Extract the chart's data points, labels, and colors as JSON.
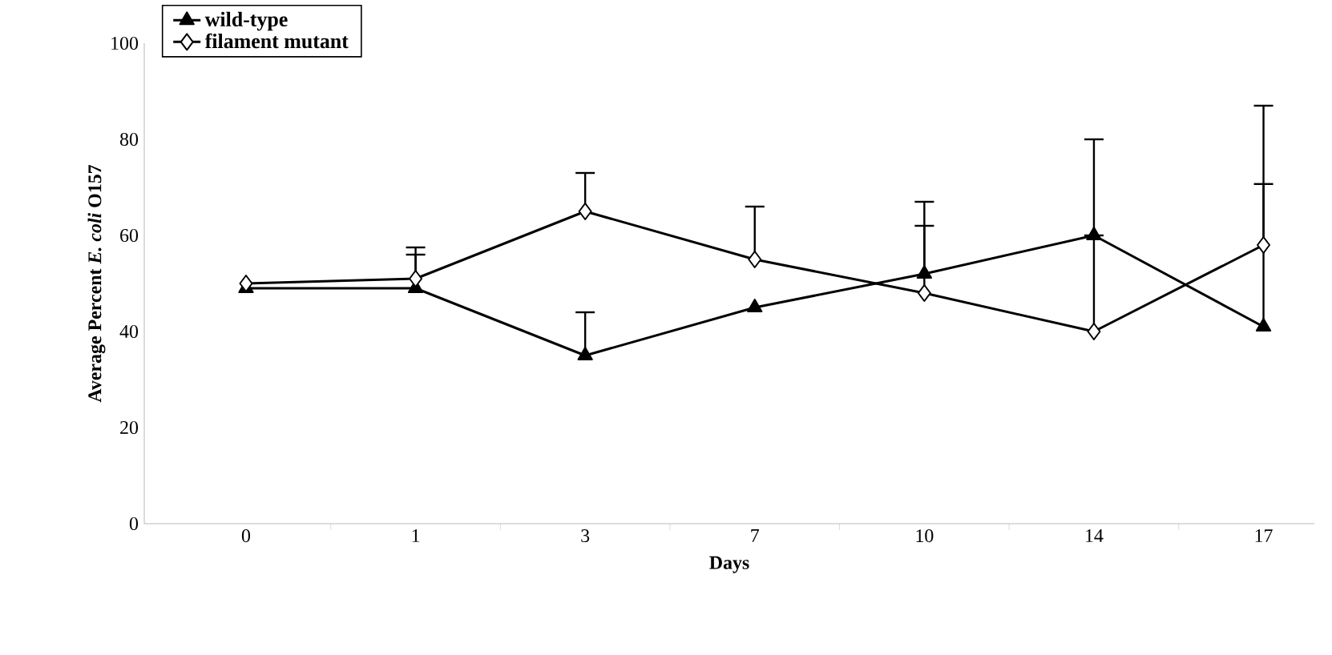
{
  "chart_data": {
    "type": "line",
    "xlabel": "Days",
    "ylabel": "Average Percent *E. coli* O157",
    "categories": [
      "0",
      "1",
      "3",
      "7",
      "10",
      "14",
      "17"
    ],
    "series": [
      {
        "name": "wild-type",
        "color": "#000000",
        "marker": "triangle",
        "values": [
          49,
          49,
          35,
          45,
          52,
          60,
          41
        ],
        "errors": [
          null,
          [
            49,
            56
          ],
          [
            35,
            44
          ],
          null,
          [
            52,
            67
          ],
          [
            60,
            80
          ],
          [
            41,
            70.7
          ]
        ]
      },
      {
        "name": "filament mutant",
        "color": "#000000",
        "marker": "diamond",
        "values": [
          50,
          51,
          65,
          55,
          48,
          40,
          58
        ],
        "errors": [
          null,
          [
            51,
            57.5
          ],
          [
            65,
            73
          ],
          [
            55,
            66
          ],
          [
            48,
            62
          ],
          [
            40,
            60
          ],
          [
            58,
            87
          ]
        ]
      }
    ],
    "ylim": [
      0,
      100
    ],
    "yticks": [
      0,
      20,
      40,
      60,
      80,
      100
    ],
    "grid": false,
    "legend": "top left",
    "line_style": "solid"
  }
}
